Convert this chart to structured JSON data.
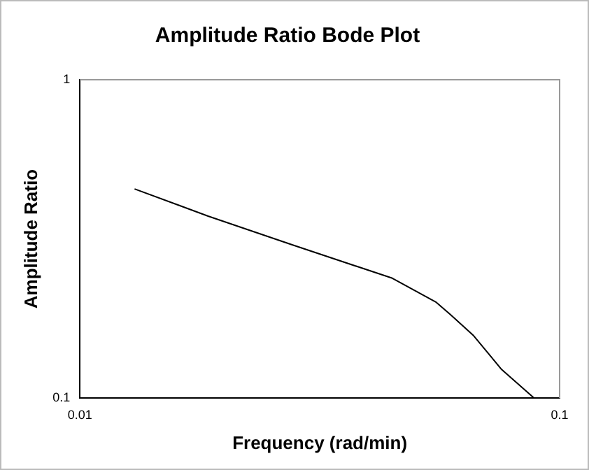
{
  "chart_data": {
    "type": "line",
    "title": "Amplitude Ratio Bode Plot",
    "xlabel": "Frequency (rad/min)",
    "ylabel": "Amplitude Ratio",
    "x": [
      0.013,
      0.0185,
      0.0277,
      0.0448,
      0.0553,
      0.0592,
      0.0662,
      0.0757,
      0.0885
    ],
    "series": [
      {
        "color": "#000000",
        "values": [
          0.454,
          0.373,
          0.303,
          0.238,
          0.2,
          0.183,
          0.157,
          0.123,
          0.1
        ]
      }
    ],
    "log": "xy",
    "xlim": [
      0.01,
      0.1
    ],
    "xticks": [
      0.01,
      0.1
    ],
    "ylim": [
      0.1,
      1
    ],
    "yticks": [
      0.1,
      1
    ],
    "grid": false,
    "legend": false,
    "marker": "none",
    "line_style": "solid"
  }
}
